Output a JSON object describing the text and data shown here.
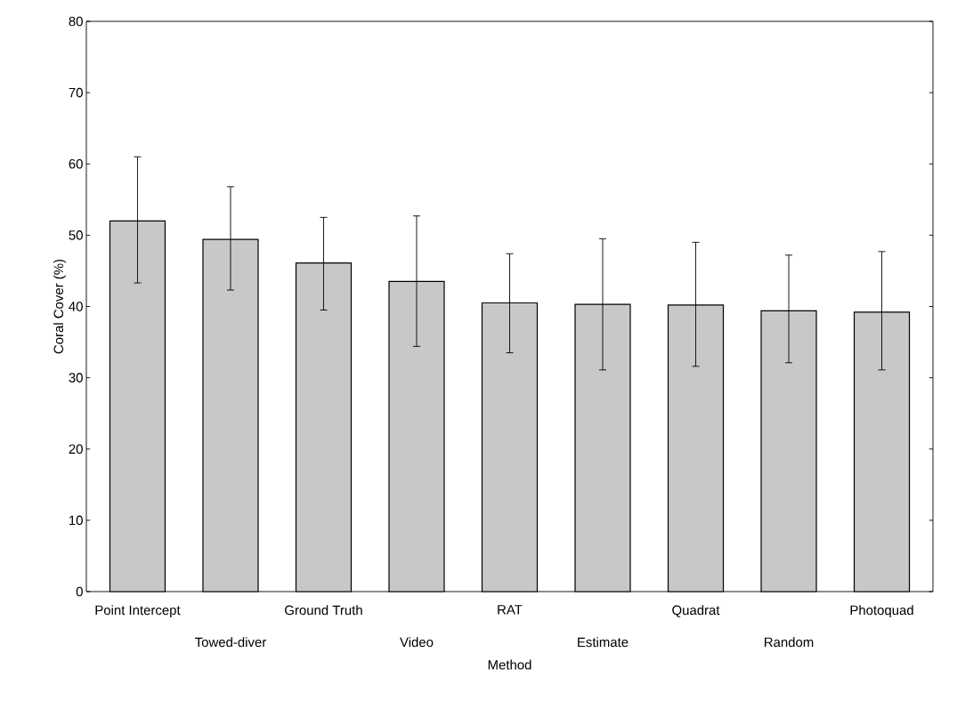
{
  "chart_data": {
    "type": "bar",
    "xlabel": "Method",
    "ylabel": "Coral Cover (%)",
    "categories": [
      "Point Intercept",
      "Towed-diver",
      "Ground Truth",
      "Video",
      "RAT",
      "Estimate",
      "Quadrat",
      "Random",
      "Photoquad"
    ],
    "values": [
      52,
      49.4,
      46.1,
      43.5,
      40.5,
      40.3,
      40.2,
      39.4,
      39.2
    ],
    "errors": [
      [
        43.3,
        61
      ],
      [
        42.3,
        56.8
      ],
      [
        39.5,
        52.5
      ],
      [
        34.4,
        52.7
      ],
      [
        33.5,
        47.4
      ],
      [
        31.1,
        49.5
      ],
      [
        31.6,
        49
      ],
      [
        32.1,
        47.2
      ],
      [
        31.1,
        47.7
      ]
    ],
    "color": "#c8c8c8",
    "ylim": [
      0,
      80
    ],
    "yticks": [
      0,
      10,
      20,
      30,
      40,
      50,
      60,
      70,
      80
    ],
    "grid": false
  }
}
